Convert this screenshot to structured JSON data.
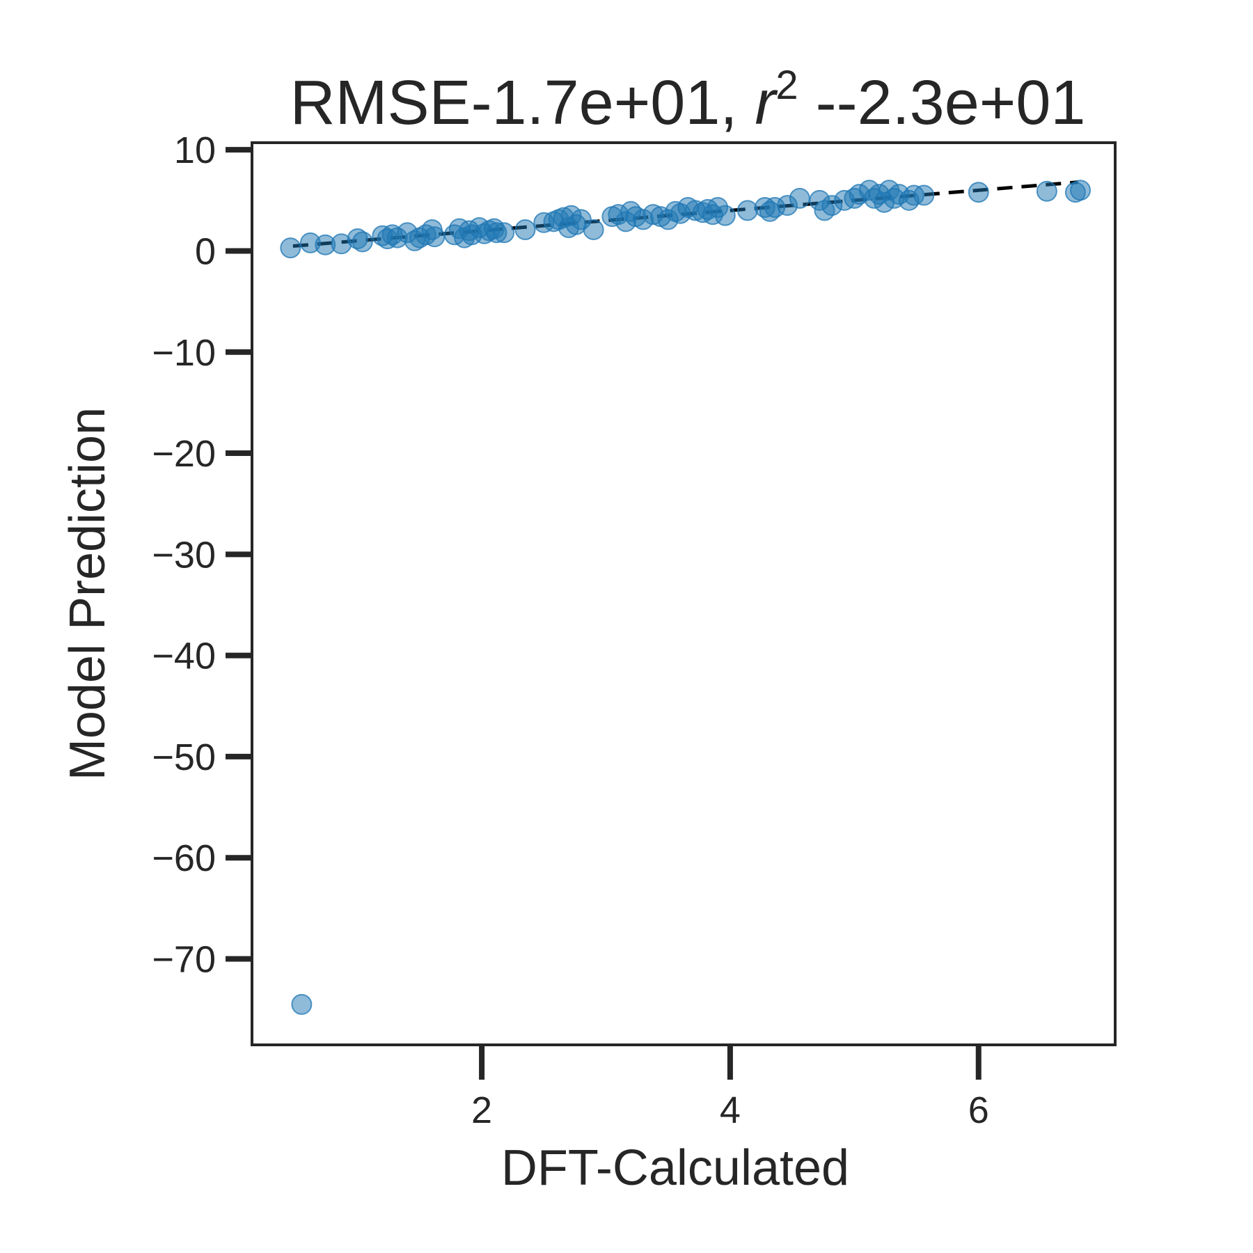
{
  "chart_data": {
    "type": "scatter",
    "title_parts": {
      "prefix": "RMSE-1.7e+01, ",
      "r_symbol": "r",
      "exponent": "2",
      "suffix": " --2.3e+01"
    },
    "xlabel": "DFT-Calculated",
    "ylabel": "Model Prediction",
    "xlim": [
      0.15,
      7.1
    ],
    "ylim": [
      -78.5,
      10.7
    ],
    "xticks": [
      2,
      4,
      6
    ],
    "xtick_labels": [
      "2",
      "4",
      "6"
    ],
    "yticks": [
      10,
      0,
      -10,
      -20,
      -30,
      -40,
      -50,
      -60,
      -70
    ],
    "ytick_labels": [
      "10",
      "0",
      "−10",
      "−20",
      "−30",
      "−40",
      "−50",
      "−60",
      "−70"
    ],
    "grid": false,
    "legend": "none",
    "point_color": "#1f77b4",
    "point_alpha": 0.5,
    "reference_line": {
      "style": "dashed",
      "color": "#000000",
      "x": [
        0.48,
        6.8
      ],
      "y": [
        0.48,
        6.8
      ]
    },
    "series": [
      {
        "x": [
          0.46,
          0.62,
          0.74,
          0.87,
          1.0,
          1.04,
          1.2,
          1.24,
          1.28,
          1.32,
          1.4,
          1.46,
          1.5,
          1.55,
          1.6,
          1.62,
          1.78,
          1.82,
          1.86,
          1.9,
          1.92,
          1.98,
          2.02,
          2.06,
          2.1,
          2.12,
          2.18,
          2.35,
          2.5,
          2.58,
          2.62,
          2.66,
          2.7,
          2.72,
          2.76,
          2.8,
          2.9,
          3.05,
          3.1,
          3.16,
          3.2,
          3.24,
          3.3,
          3.38,
          3.44,
          3.5,
          3.56,
          3.6,
          3.66,
          3.72,
          3.78,
          3.82,
          3.86,
          3.9,
          3.96,
          4.14,
          4.28,
          4.32,
          4.36,
          4.46,
          4.56,
          4.72,
          4.76,
          4.82,
          4.92,
          5.0,
          5.04,
          5.12,
          5.16,
          5.2,
          5.24,
          5.28,
          5.32,
          5.36,
          5.44,
          5.48,
          5.56,
          6.0,
          6.55,
          6.78,
          6.82,
          0.55
        ],
        "y": [
          0.3,
          0.8,
          0.6,
          0.7,
          1.2,
          0.9,
          1.5,
          1.2,
          1.6,
          1.3,
          1.8,
          1.0,
          1.3,
          1.6,
          2.1,
          1.4,
          1.6,
          2.2,
          1.3,
          2.0,
          1.6,
          2.3,
          1.7,
          2.0,
          2.2,
          1.8,
          1.8,
          2.1,
          2.8,
          2.9,
          3.1,
          3.3,
          2.3,
          3.5,
          2.6,
          3.1,
          2.1,
          3.4,
          3.6,
          2.9,
          3.9,
          3.4,
          3.1,
          3.6,
          3.4,
          3.1,
          3.9,
          3.7,
          4.3,
          4.0,
          3.8,
          4.1,
          3.6,
          4.3,
          3.5,
          4.0,
          4.3,
          3.9,
          4.3,
          4.5,
          5.2,
          5.0,
          4.0,
          4.5,
          5.0,
          5.2,
          5.6,
          6.0,
          5.2,
          5.6,
          4.8,
          6.0,
          5.2,
          5.6,
          5.0,
          5.5,
          5.5,
          5.8,
          5.9,
          5.8,
          6.0,
          -74.5
        ]
      }
    ]
  }
}
